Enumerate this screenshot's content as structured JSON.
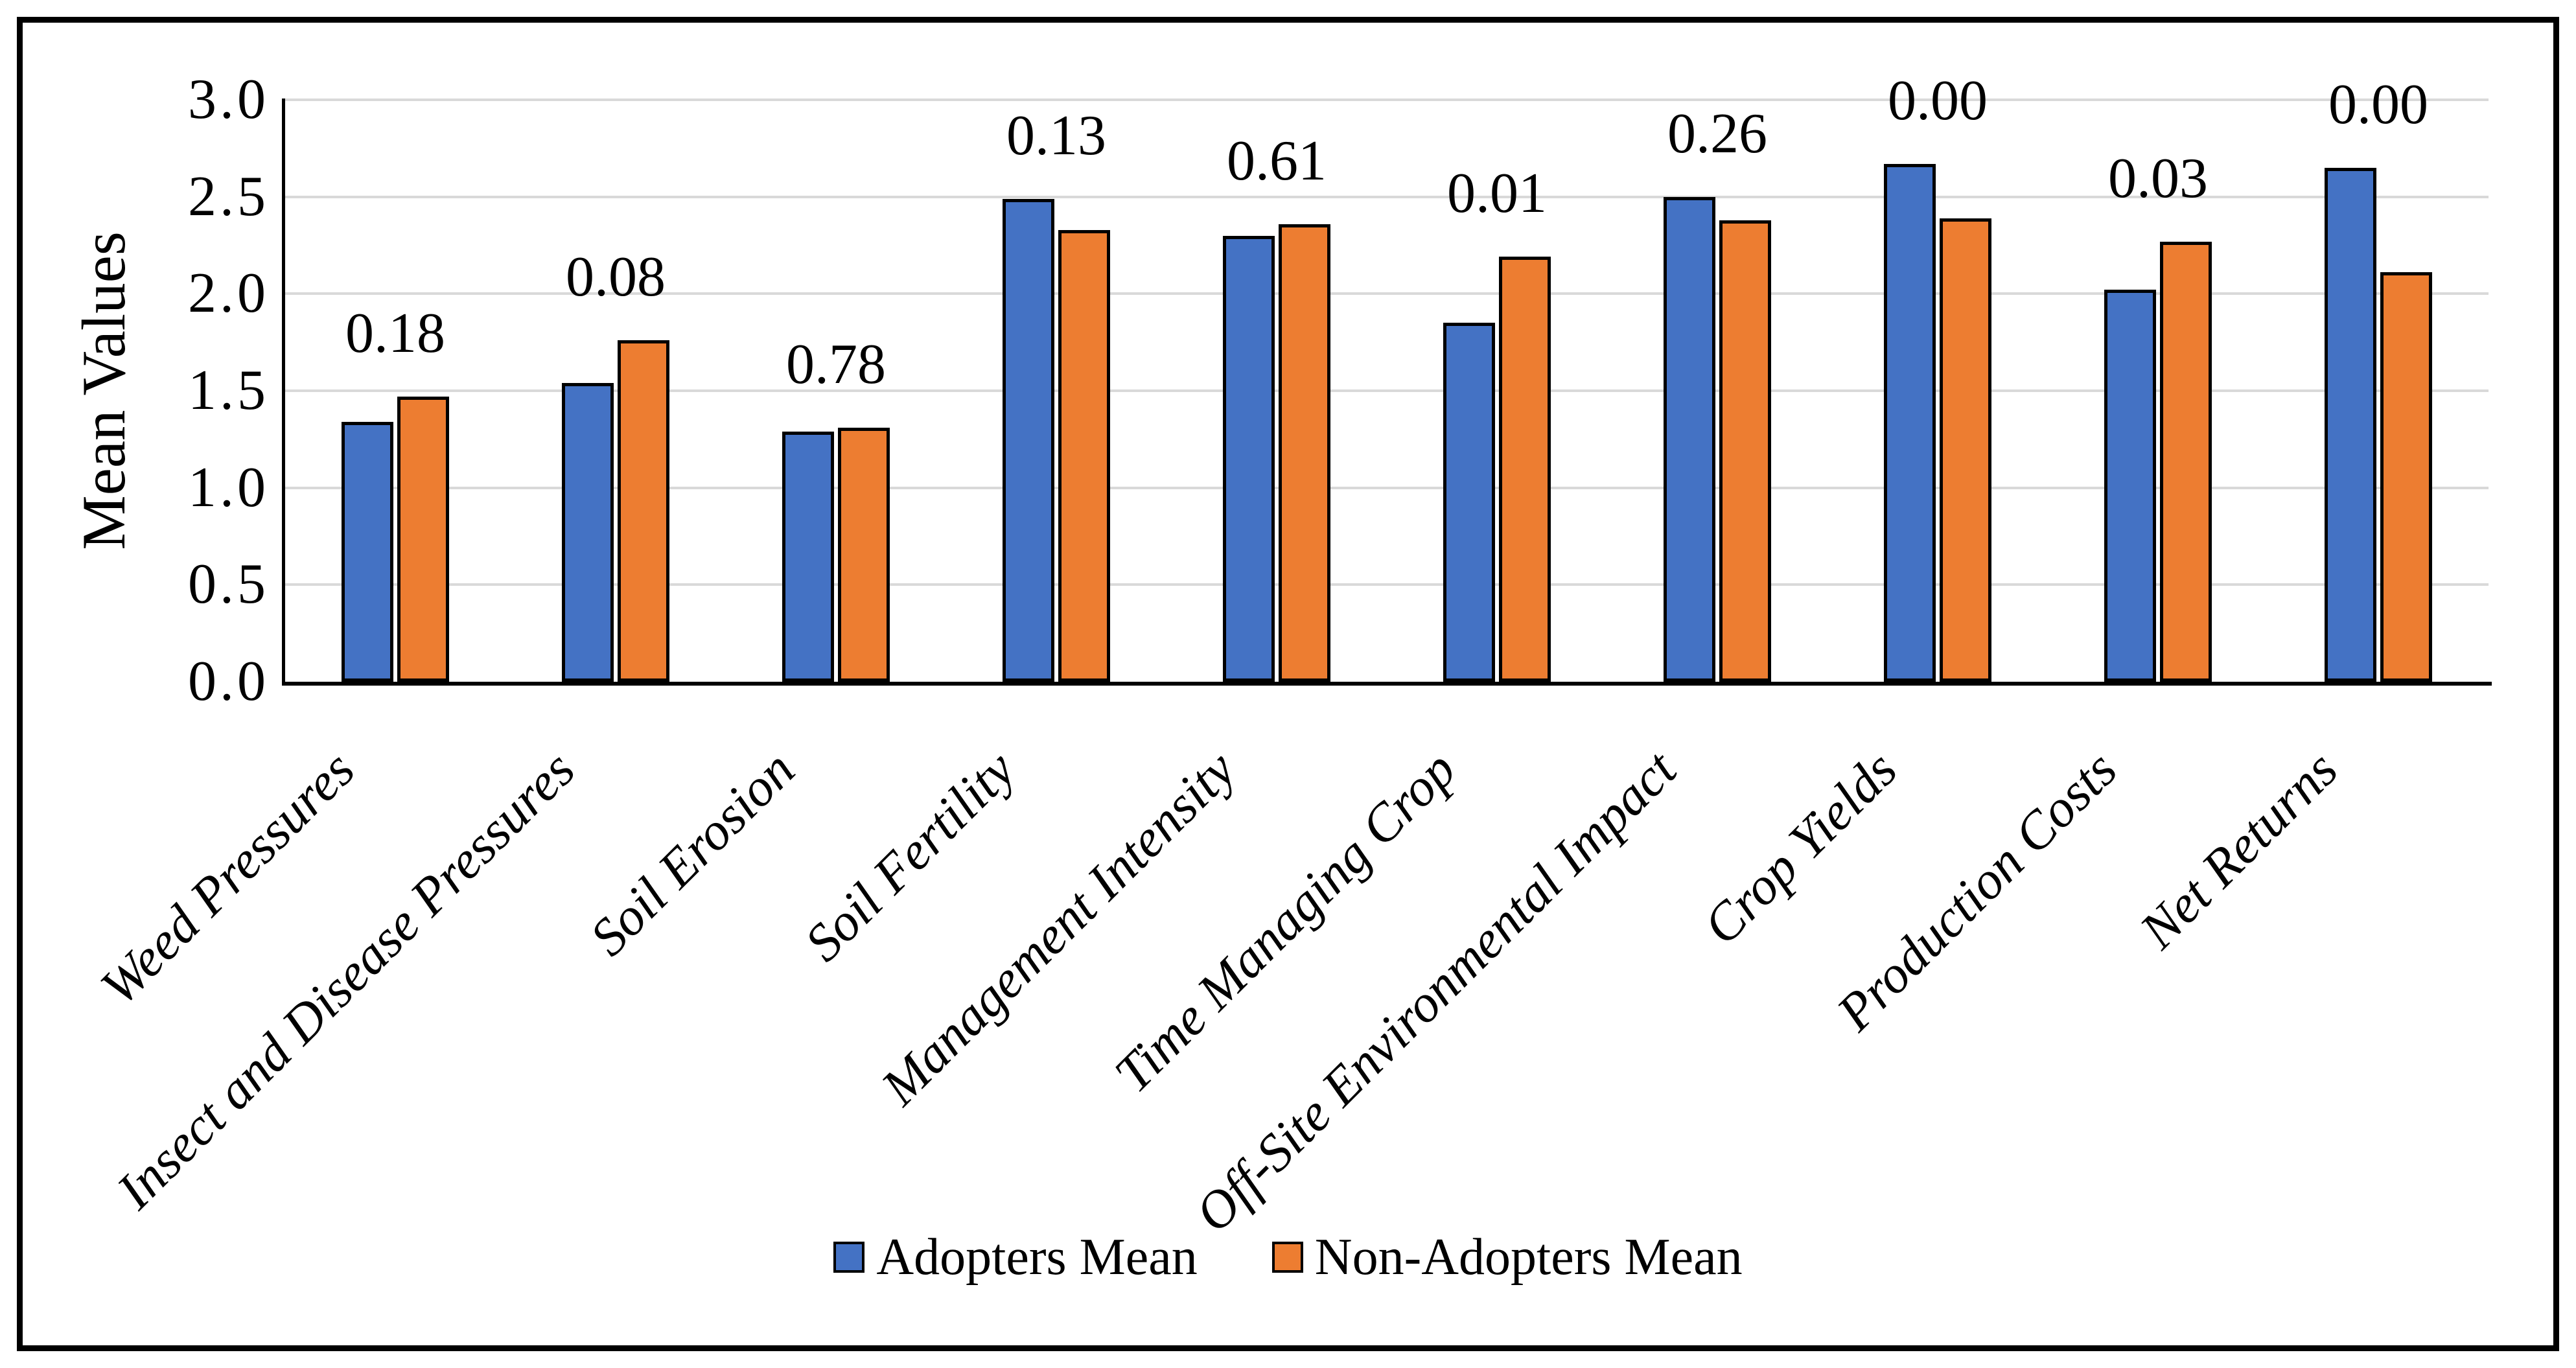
{
  "figure": {
    "ylabel": "Mean Values"
  },
  "chart_data": {
    "type": "bar",
    "title": "",
    "xlabel": "",
    "ylabel": "Mean Values",
    "ylim": [
      0,
      3
    ],
    "ytick_step": 0.5,
    "yticks": [
      "3.0",
      "2.5",
      "2.0",
      "1.5",
      "1.0",
      "0.5",
      "0.0"
    ],
    "grid": true,
    "legend_position": "bottom",
    "categories": [
      "Weed Pressures",
      "Insect and Disease Pressures",
      "Soil Erosion",
      "Soil Fertility",
      "Management Intensity",
      "Time Managing Crop",
      "Off-Site Environmental Impact",
      "Crop Yields",
      "Production Costs",
      "Net Returns"
    ],
    "series": [
      {
        "name": "Adopters Mean",
        "color": "#4472C4",
        "values": [
          1.34,
          1.54,
          1.29,
          2.49,
          2.3,
          1.85,
          2.5,
          2.67,
          2.02,
          2.65
        ]
      },
      {
        "name": "Non-Adopters Mean",
        "color": "#ED7D31",
        "values": [
          1.47,
          1.76,
          1.31,
          2.33,
          2.36,
          2.19,
          2.38,
          2.39,
          2.27,
          2.11
        ]
      }
    ],
    "data_labels": [
      "0.18",
      "0.08",
      "0.78",
      "0.13",
      "0.61",
      "0.01",
      "0.26",
      "0.00",
      "0.03",
      "0.00"
    ]
  }
}
